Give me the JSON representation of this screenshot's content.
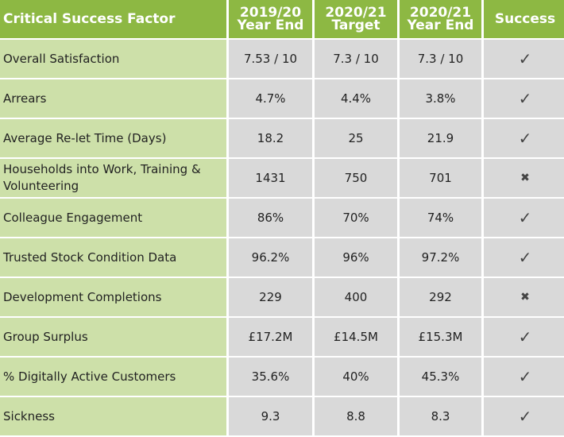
{
  "headers": [
    "Critical Success Factor",
    "2019/20 Year End",
    "2020/21 Target",
    "2020/21 Year End",
    "Success"
  ],
  "header_lines": [
    [
      "Critical Success Factor"
    ],
    [
      "2019/20",
      "Year End"
    ],
    [
      "2020/21",
      "Target"
    ],
    [
      "2020/21",
      "Year End"
    ],
    [
      "Success"
    ]
  ],
  "colors": {
    "header": "#8db843",
    "factor_cell": "#cde0a9",
    "value_cell": "#d9d9d9"
  },
  "rows": [
    {
      "factor": "Overall Satisfaction",
      "y1920": "7.53 / 10",
      "target": "7.3 / 10",
      "y2021": "7.3 / 10",
      "success": "✓",
      "icon": "check-icon"
    },
    {
      "factor": "Arrears",
      "y1920": "4.7%",
      "target": "4.4%",
      "y2021": "3.8%",
      "success": "✓",
      "icon": "check-icon"
    },
    {
      "factor": "Average Re-let Time (Days)",
      "y1920": "18.2",
      "target": "25",
      "y2021": "21.9",
      "success": "✓",
      "icon": "check-icon"
    },
    {
      "factor": "Households into Work, Training & Volunteering",
      "y1920": "1431",
      "target": "750",
      "y2021": "701",
      "success": "✖",
      "icon": "cross-icon"
    },
    {
      "factor": "Colleague Engagement",
      "y1920": "86%",
      "target": "70%",
      "y2021": "74%",
      "success": "✓",
      "icon": "check-icon"
    },
    {
      "factor": "Trusted Stock Condition Data",
      "y1920": "96.2%",
      "target": "96%",
      "y2021": "97.2%",
      "success": "✓",
      "icon": "check-icon"
    },
    {
      "factor": "Development Completions",
      "y1920": "229",
      "target": "400",
      "y2021": "292",
      "success": "✖",
      "icon": "cross-icon"
    },
    {
      "factor": "Group Surplus",
      "y1920": "£17.2M",
      "target": "£14.5M",
      "y2021": "£15.3M",
      "success": "✓",
      "icon": "check-icon"
    },
    {
      "factor": "% Digitally Active Customers",
      "y1920": "35.6%",
      "target": "40%",
      "y2021": "45.3%",
      "success": "✓",
      "icon": "check-icon"
    },
    {
      "factor": "Sickness",
      "y1920": "9.3",
      "target": "8.8",
      "y2021": "8.3",
      "success": "✓",
      "icon": "check-icon"
    }
  ]
}
